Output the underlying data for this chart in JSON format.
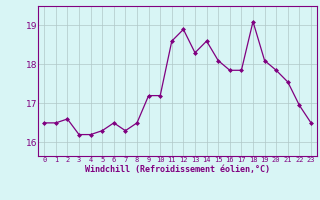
{
  "x": [
    0,
    1,
    2,
    3,
    4,
    5,
    6,
    7,
    8,
    9,
    10,
    11,
    12,
    13,
    14,
    15,
    16,
    17,
    18,
    19,
    20,
    21,
    22,
    23
  ],
  "y": [
    16.5,
    16.5,
    16.6,
    16.2,
    16.2,
    16.3,
    16.5,
    16.3,
    16.5,
    17.2,
    17.2,
    18.6,
    18.9,
    18.3,
    18.6,
    18.1,
    17.85,
    17.85,
    19.1,
    18.1,
    17.85,
    17.55,
    16.95,
    16.5
  ],
  "line_color": "#800080",
  "marker": "D",
  "marker_size": 2,
  "bg_color": "#d8f5f5",
  "grid_color": "#b0c8c8",
  "xlabel": "Windchill (Refroidissement éolien,°C)",
  "xlabel_color": "#800080",
  "ylabel_ticks": [
    16,
    17,
    18,
    19
  ],
  "xlim": [
    -0.5,
    23.5
  ],
  "ylim": [
    15.65,
    19.5
  ],
  "tick_color": "#800080",
  "spine_color": "#800080",
  "xtick_fontsize": 5.0,
  "ytick_fontsize": 6.5,
  "xlabel_fontsize": 6.0
}
